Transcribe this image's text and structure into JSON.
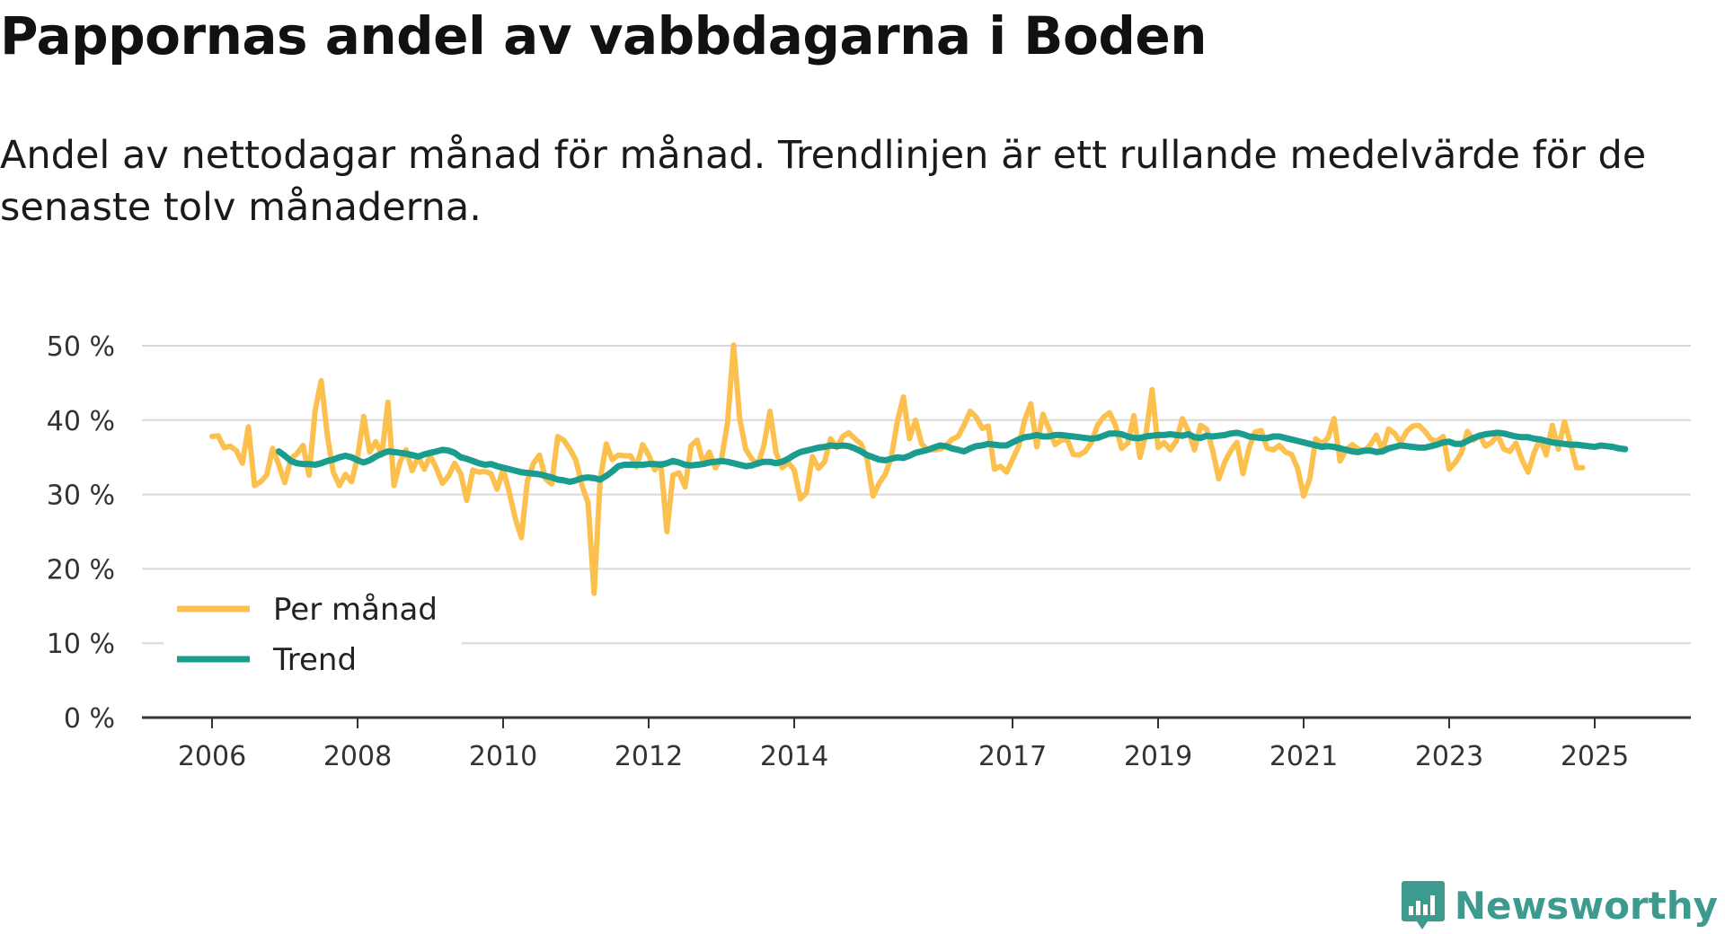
{
  "title": "Pappornas andel av vabbdagarna i Boden",
  "subtitle": "Andel av nettodagar månad för månad. Trendlinjen är ett rullande medelvärde för de senaste tolv månaderna.",
  "brand": {
    "name": "Newsworthy",
    "color": "#3d9a8f"
  },
  "colors": {
    "monthly": "#fbc04e",
    "trend": "#1a9c8e",
    "grid": "#d9d9d9",
    "axis": "#333333"
  },
  "chart_data": {
    "type": "line",
    "title": "Pappornas andel av vabbdagarna i Boden",
    "xlabel": "",
    "ylabel": "",
    "x_start": "2006-01",
    "ylim": [
      0,
      50
    ],
    "yticks": [
      0,
      10,
      20,
      30,
      40,
      50
    ],
    "ytick_labels": [
      "0 %",
      "10 %",
      "20 %",
      "30 %",
      "40 %",
      "50 %"
    ],
    "xticks": [
      2006,
      2008,
      2010,
      2012,
      2014,
      2017,
      2019,
      2021,
      2023,
      2025
    ],
    "xtick_labels": [
      "2006",
      "2008",
      "2010",
      "2012",
      "2014",
      "2017",
      "2019",
      "2021",
      "2023",
      "2025"
    ],
    "legend": [
      "Per månad",
      "Trend"
    ],
    "legend_position": "bottom-left",
    "series": [
      {
        "name": "Per månad",
        "start": "2006-01",
        "values": [
          37.8,
          37.9,
          36.3,
          36.5,
          35.9,
          34.2,
          39.1,
          31.2,
          31.7,
          32.6,
          36.2,
          34.0,
          31.6,
          34.8,
          35.5,
          36.6,
          32.6,
          41.3,
          45.3,
          38.0,
          33.0,
          31.2,
          32.7,
          31.7,
          35.0,
          40.5,
          35.7,
          37.1,
          35.3,
          42.4,
          31.2,
          34.4,
          36.0,
          33.2,
          35.1,
          33.4,
          35.2,
          33.5,
          31.5,
          32.5,
          34.2,
          32.8,
          29.2,
          33.3,
          33.0,
          33.1,
          32.8,
          30.7,
          33.4,
          30.3,
          26.8,
          24.2,
          31.8,
          34.2,
          35.3,
          32.1,
          31.4,
          37.8,
          37.3,
          36.1,
          34.6,
          31.2,
          28.9,
          16.7,
          32.0,
          36.8,
          34.7,
          35.3,
          35.2,
          35.2,
          33.7,
          36.7,
          35.3,
          33.3,
          34.2,
          25.0,
          32.6,
          32.9,
          31.0,
          36.6,
          37.3,
          34.2,
          35.7,
          33.6,
          34.7,
          39.7,
          50.1,
          40.2,
          36.1,
          34.8,
          34.0,
          36.6,
          41.2,
          35.6,
          33.6,
          34.3,
          33.3,
          29.4,
          30.2,
          35.1,
          33.5,
          34.4,
          37.5,
          36.3,
          37.8,
          38.3,
          37.5,
          36.8,
          34.8,
          29.8,
          31.5,
          32.7,
          35.0,
          39.8,
          43.1,
          37.5,
          40.0,
          36.8,
          36.0,
          36.0,
          36.1,
          36.5,
          37.4,
          37.8,
          39.3,
          41.2,
          40.4,
          38.9,
          39.2,
          33.4,
          33.8,
          33.0,
          34.7,
          36.5,
          40.0,
          42.2,
          36.4,
          40.8,
          38.9,
          36.7,
          37.3,
          37.4,
          35.4,
          35.3,
          35.8,
          37.0,
          39.3,
          40.4,
          41.0,
          39.2,
          36.2,
          36.9,
          40.6,
          35.0,
          38.1,
          44.1,
          36.3,
          37.0,
          36.0,
          37.2,
          40.2,
          38.5,
          36.0,
          39.3,
          38.8,
          35.9,
          32.1,
          34.4,
          35.9,
          37.0,
          32.8,
          36.3,
          38.4,
          38.6,
          36.2,
          36.0,
          36.6,
          35.7,
          35.4,
          33.5,
          29.8,
          32.1,
          37.5,
          36.8,
          37.6,
          40.2,
          34.5,
          36.0,
          36.7,
          36.1,
          35.8,
          36.7,
          38.0,
          35.9,
          38.8,
          38.2,
          37.0,
          38.5,
          39.2,
          39.3,
          38.5,
          37.4,
          37.2,
          37.8,
          33.4,
          34.3,
          35.6,
          38.5,
          37.3,
          38.0,
          36.5,
          37.0,
          38.0,
          36.1,
          35.8,
          36.9,
          34.7,
          33.0,
          35.6,
          37.5,
          35.3,
          39.3,
          36.1,
          39.8,
          36.9,
          33.6,
          33.6
        ]
      },
      {
        "name": "Trend",
        "start": "2006-12",
        "values": [
          35.8,
          35.2,
          34.5,
          34.2,
          34.1,
          34.1,
          34.0,
          34.2,
          34.5,
          34.7,
          35.0,
          35.2,
          35.0,
          34.6,
          34.3,
          34.6,
          35.1,
          35.5,
          35.8,
          35.7,
          35.6,
          35.5,
          35.3,
          35.1,
          35.4,
          35.6,
          35.8,
          36.0,
          35.9,
          35.6,
          35.0,
          34.8,
          34.5,
          34.2,
          34.0,
          34.1,
          33.8,
          33.6,
          33.4,
          33.2,
          33.0,
          32.9,
          32.8,
          32.7,
          32.5,
          32.3,
          32.0,
          31.9,
          31.7,
          31.9,
          32.2,
          32.3,
          32.2,
          32.0,
          32.5,
          33.1,
          33.8,
          34.0,
          34.0,
          34.0,
          34.0,
          34.1,
          34.1,
          34.0,
          34.2,
          34.5,
          34.3,
          34.0,
          33.9,
          34.0,
          34.1,
          34.3,
          34.4,
          34.5,
          34.4,
          34.2,
          34.0,
          33.8,
          33.9,
          34.2,
          34.4,
          34.4,
          34.2,
          34.4,
          34.8,
          35.3,
          35.7,
          35.9,
          36.1,
          36.3,
          36.4,
          36.6,
          36.5,
          36.6,
          36.5,
          36.2,
          35.8,
          35.3,
          35.0,
          34.7,
          34.6,
          34.8,
          35.0,
          34.9,
          35.2,
          35.6,
          35.8,
          36.0,
          36.3,
          36.6,
          36.5,
          36.2,
          36.0,
          35.8,
          36.2,
          36.5,
          36.6,
          36.8,
          36.7,
          36.6,
          36.6,
          37.0,
          37.4,
          37.7,
          37.8,
          38.0,
          37.8,
          37.8,
          38.0,
          38.0,
          37.9,
          37.8,
          37.7,
          37.6,
          37.5,
          37.6,
          37.9,
          38.2,
          38.2,
          38.1,
          37.8,
          37.6,
          37.6,
          37.8,
          37.9,
          38.0,
          38.0,
          38.1,
          38.0,
          37.9,
          38.1,
          37.7,
          37.6,
          37.9,
          37.8,
          37.9,
          38.0,
          38.2,
          38.3,
          38.1,
          37.8,
          37.7,
          37.6,
          37.6,
          37.8,
          37.8,
          37.6,
          37.4,
          37.2,
          37.0,
          36.8,
          36.6,
          36.4,
          36.5,
          36.4,
          36.2,
          36.0,
          35.8,
          35.7,
          35.9,
          35.9,
          35.7,
          35.8,
          36.2,
          36.4,
          36.6,
          36.5,
          36.4,
          36.3,
          36.3,
          36.5,
          36.7,
          37.0,
          37.1,
          36.8,
          36.8,
          37.2,
          37.6,
          37.9,
          38.1,
          38.2,
          38.3,
          38.2,
          38.0,
          37.8,
          37.7,
          37.7,
          37.5,
          37.4,
          37.2,
          37.0,
          36.9,
          36.8,
          36.7,
          36.7,
          36.6,
          36.5,
          36.4,
          36.6,
          36.5,
          36.4,
          36.2,
          36.1
        ]
      }
    ]
  }
}
